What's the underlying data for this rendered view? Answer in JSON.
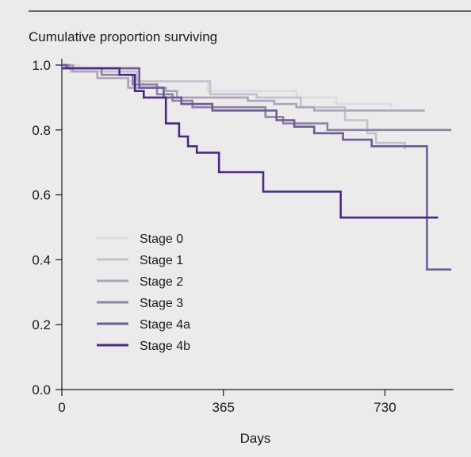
{
  "chart_data": {
    "type": "line",
    "step": true,
    "title": "",
    "ylabel": "Cumulative proportion surviving",
    "xlabel": "Days",
    "xlim": [
      0,
      885
    ],
    "ylim": [
      0,
      1.0
    ],
    "x_ticks": [
      0,
      365,
      730
    ],
    "y_ticks": [
      0.0,
      0.2,
      0.4,
      0.6,
      0.8,
      1.0
    ],
    "y_tick_labels": [
      "0.0",
      "0.2",
      "0.4",
      "0.6",
      "0.8",
      "1.0"
    ],
    "grid": false,
    "legend_position": "lower-left",
    "series": [
      {
        "name": "Stage 0",
        "color": "#dcdae4",
        "x": [
          0,
          40,
          150,
          330,
          530,
          620,
          745
        ],
        "y": [
          1.0,
          0.99,
          0.95,
          0.92,
          0.9,
          0.88,
          0.87
        ]
      },
      {
        "name": "Stage 1",
        "color": "#c4c1ce",
        "x": [
          0,
          20,
          170,
          335,
          440,
          540,
          640,
          690,
          710,
          775
        ],
        "y": [
          1.0,
          0.98,
          0.95,
          0.91,
          0.9,
          0.87,
          0.83,
          0.79,
          0.76,
          0.74
        ]
      },
      {
        "name": "Stage 2",
        "color": "#a9a3b8",
        "x": [
          0,
          25,
          80,
          150,
          235,
          260,
          420,
          480,
          530,
          570,
          820
        ],
        "y": [
          1.0,
          0.98,
          0.96,
          0.93,
          0.92,
          0.9,
          0.89,
          0.88,
          0.87,
          0.86,
          0.86
        ]
      },
      {
        "name": "Stage 3",
        "color": "#8c82a3",
        "x": [
          0,
          15,
          90,
          160,
          215,
          250,
          295,
          460,
          500,
          600,
          880
        ],
        "y": [
          1.0,
          0.99,
          0.97,
          0.94,
          0.91,
          0.89,
          0.87,
          0.84,
          0.82,
          0.8,
          0.8
        ]
      },
      {
        "name": "Stage 4a",
        "color": "#6f5b95",
        "x": [
          0,
          10,
          175,
          230,
          270,
          340,
          485,
          525,
          570,
          635,
          700,
          810,
          825,
          880
        ],
        "y": [
          1.0,
          0.99,
          0.93,
          0.9,
          0.88,
          0.86,
          0.83,
          0.81,
          0.79,
          0.77,
          0.75,
          0.75,
          0.37,
          0.37
        ]
      },
      {
        "name": "Stage 4b",
        "color": "#4b2a86",
        "x": [
          0,
          130,
          165,
          185,
          235,
          265,
          285,
          305,
          355,
          400,
          455,
          630,
          850
        ],
        "y": [
          0.99,
          0.97,
          0.92,
          0.9,
          0.82,
          0.78,
          0.75,
          0.73,
          0.67,
          0.67,
          0.61,
          0.53,
          0.53
        ]
      }
    ]
  }
}
